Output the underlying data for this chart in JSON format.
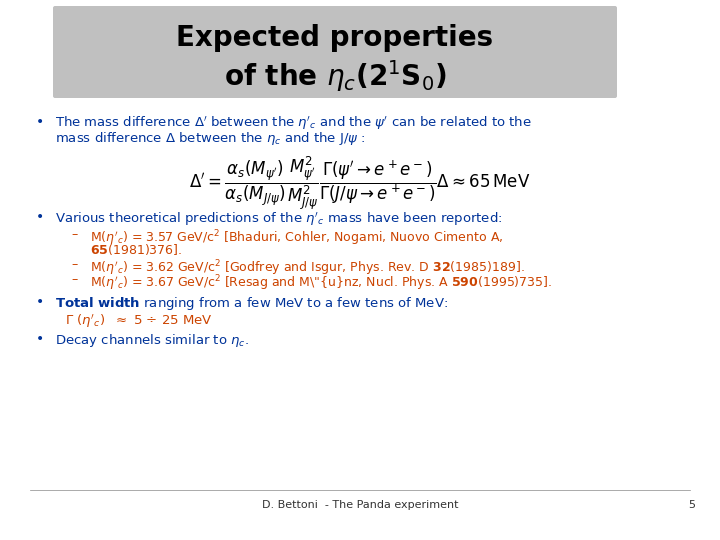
{
  "title_line1": "Expected properties",
  "title_line2": "of the $\\eta_c$(2$^1$S$_0$)",
  "title_bg_color": "#c0c0c0",
  "title_text_color": "#000000",
  "bg_color": "#ffffff",
  "blue_color": "#003399",
  "orange_color": "#cc4400",
  "bullet_color": "#003399",
  "footer_text": "D. Bettoni  - The Panda experiment",
  "footer_page": "5",
  "text1": "The mass difference $\\Delta'$ between the $\\eta'_c$ and the $\\psi'$ can be related to the",
  "text1b": "mass difference $\\Delta$ between the $\\eta_c$ and the J/$\\psi$ :",
  "formula": "$\\Delta' = \\dfrac{\\alpha_s(M_{\\psi'})}{\\alpha_s(M_{J/\\psi})} \\dfrac{M^2_{\\psi'}}{M^2_{J/\\psi}} \\dfrac{\\Gamma(\\psi' \\to e^+e^-)}{\\Gamma(J/\\psi \\to e^+e^-)} \\Delta \\approx 65\\,\\mathrm{MeV}$",
  "text2": "Various theoretical predictions of the $\\eta'_c$ mass have been reported:",
  "sub1a": "M($\\eta'_c$) = 3.57 GeV/c$^2$ ",
  "sub1b": "[Bhaduri, Cohler, Nogami, Nuovo Cimento A,",
  "sub1c": "\\textbf{65}(1981)376].",
  "sub2a": "M($\\eta'_c$) = 3.62 GeV/c$^2$ ",
  "sub2b": "[Godfrey and Isgur, Phys. Rev. D ",
  "sub2c": "32",
  "sub2d": "(1985)189].",
  "sub3a": "M($\\eta'_c$) = 3.67 GeV/c$^2$ ",
  "sub3b": "[Resag and Münz, Nucl. Phys. A ",
  "sub3c": "590",
  "sub3d": "(1995)735].",
  "text3a": "Total width",
  "text3b": " ranging from a few MeV to a few tens of MeV:",
  "text4": "$\\Gamma$ ($\\eta'_c$)  $\\approx$ 5 $\\div$ 25 MeV",
  "text5a": "Decay channels similar to $\\eta_c$."
}
